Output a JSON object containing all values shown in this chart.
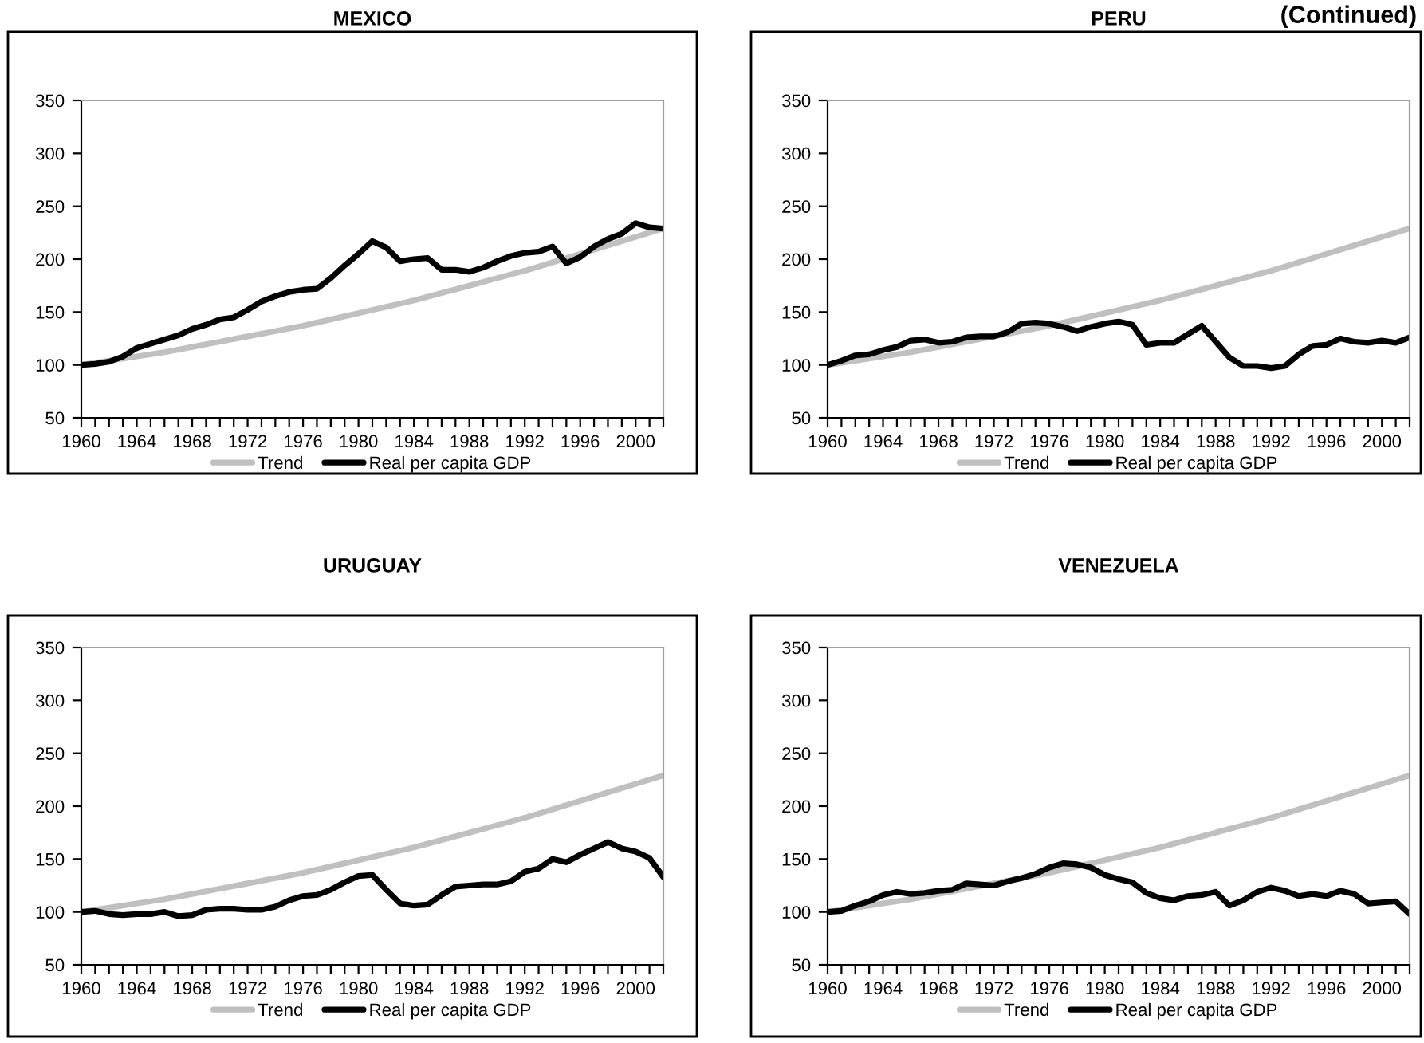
{
  "chart_data": [
    {
      "type": "line",
      "title": "MEXICO",
      "annotations": [
        "(Continued)"
      ],
      "xlim": [
        1960,
        2002
      ],
      "ylim": [
        50,
        350
      ],
      "yticks": [
        50,
        100,
        150,
        200,
        250,
        300,
        350
      ],
      "xticks": [
        1960,
        {
          "value": 1961,
          "label": null
        },
        {
          "value": 1962,
          "label": null
        },
        {
          "value": 1963,
          "label": null
        },
        1964,
        {
          "value": 1965,
          "label": null
        },
        {
          "value": 1966,
          "label": null
        },
        {
          "value": 1967,
          "label": null
        },
        1968,
        {
          "value": 1969,
          "label": null
        },
        {
          "value": 1970,
          "label": null
        },
        {
          "value": 1971,
          "label": null
        },
        1972,
        {
          "value": 1973,
          "label": null
        },
        {
          "value": 1974,
          "label": null
        },
        {
          "value": 1975,
          "label": null
        },
        1976,
        {
          "value": 1977,
          "label": null
        },
        {
          "value": 1978,
          "label": null
        },
        {
          "value": 1979,
          "label": null
        },
        1980,
        {
          "value": 1981,
          "label": null
        },
        {
          "value": 1982,
          "label": null
        },
        {
          "value": 1983,
          "label": null
        },
        1984,
        {
          "value": 1985,
          "label": null
        },
        {
          "value": 1986,
          "label": null
        },
        {
          "value": 1987,
          "label": null
        },
        1988,
        {
          "value": 1989,
          "label": null
        },
        {
          "value": 1990,
          "label": null
        },
        {
          "value": 1991,
          "label": null
        },
        1992,
        {
          "value": 1993,
          "label": null
        },
        {
          "value": 1994,
          "label": null
        },
        {
          "value": 1995,
          "label": null
        },
        1996,
        {
          "value": 1997,
          "label": null
        },
        {
          "value": 1998,
          "label": null
        },
        {
          "value": 1999,
          "label": null
        },
        2000,
        {
          "value": 2001,
          "label": null
        },
        {
          "value": 2002,
          "label": null
        }
      ],
      "legend": "bottom",
      "grid": false,
      "marker": "none",
      "line_style": "solid",
      "series": [
        {
          "name": "Trend",
          "color": "#c0c0c0",
          "x": [
            1960,
            1962,
            1964,
            1966,
            1968,
            1970,
            1972,
            1974,
            1976,
            1978,
            1980,
            1982,
            1984,
            1986,
            1988,
            1990,
            1992,
            1994,
            1996,
            1998,
            2000,
            2002
          ],
          "values": [
            100,
            104,
            108,
            112,
            117,
            122,
            127,
            132,
            137,
            143,
            149,
            155,
            161,
            168,
            175,
            182,
            189,
            197,
            205,
            213,
            221,
            229
          ]
        },
        {
          "name": "Real per capita GDP",
          "color": "#000000",
          "x": [
            1960,
            1961,
            1962,
            1963,
            1964,
            1965,
            1966,
            1967,
            1968,
            1969,
            1970,
            1971,
            1972,
            1973,
            1974,
            1975,
            1976,
            1977,
            1978,
            1979,
            1980,
            1981,
            1982,
            1983,
            1984,
            1985,
            1986,
            1987,
            1988,
            1989,
            1990,
            1991,
            1992,
            1993,
            1994,
            1995,
            1996,
            1997,
            1998,
            1999,
            2000,
            2001,
            2002
          ],
          "values": [
            100,
            101,
            103,
            108,
            116,
            120,
            124,
            128,
            134,
            138,
            143,
            145,
            152,
            160,
            165,
            169,
            171,
            172,
            182,
            194,
            205,
            217,
            211,
            198,
            200,
            201,
            190,
            190,
            188,
            192,
            198,
            203,
            206,
            207,
            212,
            196,
            202,
            212,
            219,
            224,
            234,
            230,
            229
          ]
        }
      ]
    },
    {
      "type": "line",
      "title": "PERU",
      "xlim": [
        1960,
        2002
      ],
      "ylim": [
        50,
        350
      ],
      "yticks": [
        50,
        100,
        150,
        200,
        250,
        300,
        350
      ],
      "xticks": [
        1960,
        {
          "value": 1961,
          "label": null
        },
        {
          "value": 1962,
          "label": null
        },
        {
          "value": 1963,
          "label": null
        },
        1964,
        {
          "value": 1965,
          "label": null
        },
        {
          "value": 1966,
          "label": null
        },
        {
          "value": 1967,
          "label": null
        },
        1968,
        {
          "value": 1969,
          "label": null
        },
        {
          "value": 1970,
          "label": null
        },
        {
          "value": 1971,
          "label": null
        },
        1972,
        {
          "value": 1973,
          "label": null
        },
        {
          "value": 1974,
          "label": null
        },
        {
          "value": 1975,
          "label": null
        },
        1976,
        {
          "value": 1977,
          "label": null
        },
        {
          "value": 1978,
          "label": null
        },
        {
          "value": 1979,
          "label": null
        },
        1980,
        {
          "value": 1981,
          "label": null
        },
        {
          "value": 1982,
          "label": null
        },
        {
          "value": 1983,
          "label": null
        },
        1984,
        {
          "value": 1985,
          "label": null
        },
        {
          "value": 1986,
          "label": null
        },
        {
          "value": 1987,
          "label": null
        },
        1988,
        {
          "value": 1989,
          "label": null
        },
        {
          "value": 1990,
          "label": null
        },
        {
          "value": 1991,
          "label": null
        },
        1992,
        {
          "value": 1993,
          "label": null
        },
        {
          "value": 1994,
          "label": null
        },
        {
          "value": 1995,
          "label": null
        },
        1996,
        {
          "value": 1997,
          "label": null
        },
        {
          "value": 1998,
          "label": null
        },
        {
          "value": 1999,
          "label": null
        },
        2000,
        {
          "value": 2001,
          "label": null
        },
        {
          "value": 2002,
          "label": null
        }
      ],
      "legend": "bottom",
      "grid": false,
      "marker": "none",
      "line_style": "solid",
      "series": [
        {
          "name": "Trend",
          "color": "#c0c0c0",
          "x": [
            1960,
            1962,
            1964,
            1966,
            1968,
            1970,
            1972,
            1974,
            1976,
            1978,
            1980,
            1982,
            1984,
            1986,
            1988,
            1990,
            1992,
            1994,
            1996,
            1998,
            2000,
            2002
          ],
          "values": [
            100,
            104,
            108,
            112,
            117,
            122,
            127,
            132,
            137,
            143,
            149,
            155,
            161,
            168,
            175,
            182,
            189,
            197,
            205,
            213,
            221,
            229
          ]
        },
        {
          "name": "Real per capita GDP",
          "color": "#000000",
          "x": [
            1960,
            1961,
            1962,
            1963,
            1964,
            1965,
            1966,
            1967,
            1968,
            1969,
            1970,
            1971,
            1972,
            1973,
            1974,
            1975,
            1976,
            1977,
            1978,
            1979,
            1980,
            1981,
            1982,
            1983,
            1984,
            1985,
            1986,
            1987,
            1988,
            1989,
            1990,
            1991,
            1992,
            1993,
            1994,
            1995,
            1996,
            1997,
            1998,
            1999,
            2000,
            2001,
            2002
          ],
          "values": [
            100,
            104,
            109,
            110,
            114,
            117,
            123,
            124,
            121,
            122,
            126,
            127,
            127,
            131,
            139,
            140,
            139,
            136,
            132,
            136,
            139,
            141,
            138,
            119,
            121,
            121,
            129,
            137,
            122,
            107,
            99,
            99,
            97,
            99,
            110,
            118,
            119,
            125,
            122,
            121,
            123,
            121,
            126
          ]
        }
      ]
    },
    {
      "type": "line",
      "title": "URUGUAY",
      "xlim": [
        1960,
        2002
      ],
      "ylim": [
        50,
        350
      ],
      "yticks": [
        50,
        100,
        150,
        200,
        250,
        300,
        350
      ],
      "xticks": [
        1960,
        {
          "value": 1961,
          "label": null
        },
        {
          "value": 1962,
          "label": null
        },
        {
          "value": 1963,
          "label": null
        },
        1964,
        {
          "value": 1965,
          "label": null
        },
        {
          "value": 1966,
          "label": null
        },
        {
          "value": 1967,
          "label": null
        },
        1968,
        {
          "value": 1969,
          "label": null
        },
        {
          "value": 1970,
          "label": null
        },
        {
          "value": 1971,
          "label": null
        },
        1972,
        {
          "value": 1973,
          "label": null
        },
        {
          "value": 1974,
          "label": null
        },
        {
          "value": 1975,
          "label": null
        },
        1976,
        {
          "value": 1977,
          "label": null
        },
        {
          "value": 1978,
          "label": null
        },
        {
          "value": 1979,
          "label": null
        },
        1980,
        {
          "value": 1981,
          "label": null
        },
        {
          "value": 1982,
          "label": null
        },
        {
          "value": 1983,
          "label": null
        },
        1984,
        {
          "value": 1985,
          "label": null
        },
        {
          "value": 1986,
          "label": null
        },
        {
          "value": 1987,
          "label": null
        },
        1988,
        {
          "value": 1989,
          "label": null
        },
        {
          "value": 1990,
          "label": null
        },
        {
          "value": 1991,
          "label": null
        },
        1992,
        {
          "value": 1993,
          "label": null
        },
        {
          "value": 1994,
          "label": null
        },
        {
          "value": 1995,
          "label": null
        },
        1996,
        {
          "value": 1997,
          "label": null
        },
        {
          "value": 1998,
          "label": null
        },
        {
          "value": 1999,
          "label": null
        },
        2000,
        {
          "value": 2001,
          "label": null
        },
        {
          "value": 2002,
          "label": null
        }
      ],
      "legend": "bottom",
      "grid": false,
      "marker": "none",
      "line_style": "solid",
      "series": [
        {
          "name": "Trend",
          "color": "#c0c0c0",
          "x": [
            1960,
            1962,
            1964,
            1966,
            1968,
            1970,
            1972,
            1974,
            1976,
            1978,
            1980,
            1982,
            1984,
            1986,
            1988,
            1990,
            1992,
            1994,
            1996,
            1998,
            2000,
            2002
          ],
          "values": [
            100,
            104,
            108,
            112,
            117,
            122,
            127,
            132,
            137,
            143,
            149,
            155,
            161,
            168,
            175,
            182,
            189,
            197,
            205,
            213,
            221,
            229
          ]
        },
        {
          "name": "Real per capita GDP",
          "color": "#000000",
          "x": [
            1960,
            1961,
            1962,
            1963,
            1964,
            1965,
            1966,
            1967,
            1968,
            1969,
            1970,
            1971,
            1972,
            1973,
            1974,
            1975,
            1976,
            1977,
            1978,
            1979,
            1980,
            1981,
            1982,
            1983,
            1984,
            1985,
            1986,
            1987,
            1988,
            1989,
            1990,
            1991,
            1992,
            1993,
            1994,
            1995,
            1996,
            1997,
            1998,
            1999,
            2000,
            2001,
            2002
          ],
          "values": [
            100,
            101,
            98,
            97,
            98,
            98,
            100,
            96,
            97,
            102,
            103,
            103,
            102,
            102,
            105,
            111,
            115,
            116,
            121,
            128,
            134,
            135,
            121,
            108,
            106,
            107,
            116,
            124,
            125,
            126,
            126,
            129,
            138,
            141,
            150,
            147,
            154,
            160,
            166,
            160,
            157,
            151,
            133
          ]
        }
      ]
    },
    {
      "type": "line",
      "title": "VENEZUELA",
      "xlim": [
        1960,
        2002
      ],
      "ylim": [
        50,
        350
      ],
      "yticks": [
        50,
        100,
        150,
        200,
        250,
        300,
        350
      ],
      "xticks": [
        1960,
        {
          "value": 1961,
          "label": null
        },
        {
          "value": 1962,
          "label": null
        },
        {
          "value": 1963,
          "label": null
        },
        1964,
        {
          "value": 1965,
          "label": null
        },
        {
          "value": 1966,
          "label": null
        },
        {
          "value": 1967,
          "label": null
        },
        1968,
        {
          "value": 1969,
          "label": null
        },
        {
          "value": 1970,
          "label": null
        },
        {
          "value": 1971,
          "label": null
        },
        1972,
        {
          "value": 1973,
          "label": null
        },
        {
          "value": 1974,
          "label": null
        },
        {
          "value": 1975,
          "label": null
        },
        1976,
        {
          "value": 1977,
          "label": null
        },
        {
          "value": 1978,
          "label": null
        },
        {
          "value": 1979,
          "label": null
        },
        1980,
        {
          "value": 1981,
          "label": null
        },
        {
          "value": 1982,
          "label": null
        },
        {
          "value": 1983,
          "label": null
        },
        1984,
        {
          "value": 1985,
          "label": null
        },
        {
          "value": 1986,
          "label": null
        },
        {
          "value": 1987,
          "label": null
        },
        1988,
        {
          "value": 1989,
          "label": null
        },
        {
          "value": 1990,
          "label": null
        },
        {
          "value": 1991,
          "label": null
        },
        1992,
        {
          "value": 1993,
          "label": null
        },
        {
          "value": 1994,
          "label": null
        },
        {
          "value": 1995,
          "label": null
        },
        1996,
        {
          "value": 1997,
          "label": null
        },
        {
          "value": 1998,
          "label": null
        },
        {
          "value": 1999,
          "label": null
        },
        2000,
        {
          "value": 2001,
          "label": null
        },
        {
          "value": 2002,
          "label": null
        }
      ],
      "legend": "bottom",
      "grid": false,
      "marker": "none",
      "line_style": "solid",
      "series": [
        {
          "name": "Trend",
          "color": "#c0c0c0",
          "x": [
            1960,
            1962,
            1964,
            1966,
            1968,
            1970,
            1972,
            1974,
            1976,
            1978,
            1980,
            1982,
            1984,
            1986,
            1988,
            1990,
            1992,
            1994,
            1996,
            1998,
            2000,
            2002
          ],
          "values": [
            100,
            104,
            108,
            112,
            117,
            122,
            127,
            132,
            137,
            143,
            149,
            155,
            161,
            168,
            175,
            182,
            189,
            197,
            205,
            213,
            221,
            229
          ]
        },
        {
          "name": "Real per capita GDP",
          "color": "#000000",
          "x": [
            1960,
            1961,
            1962,
            1963,
            1964,
            1965,
            1966,
            1967,
            1968,
            1969,
            1970,
            1971,
            1972,
            1973,
            1974,
            1975,
            1976,
            1977,
            1978,
            1979,
            1980,
            1981,
            1982,
            1983,
            1984,
            1985,
            1986,
            1987,
            1988,
            1989,
            1990,
            1991,
            1992,
            1993,
            1994,
            1995,
            1996,
            1997,
            1998,
            1999,
            2000,
            2001,
            2002
          ],
          "values": [
            100,
            101,
            106,
            110,
            116,
            119,
            117,
            118,
            120,
            121,
            127,
            126,
            125,
            129,
            132,
            136,
            142,
            146,
            145,
            142,
            135,
            131,
            128,
            118,
            113,
            111,
            115,
            116,
            119,
            106,
            111,
            119,
            123,
            120,
            115,
            117,
            115,
            120,
            117,
            108,
            109,
            110,
            98
          ]
        }
      ]
    }
  ]
}
